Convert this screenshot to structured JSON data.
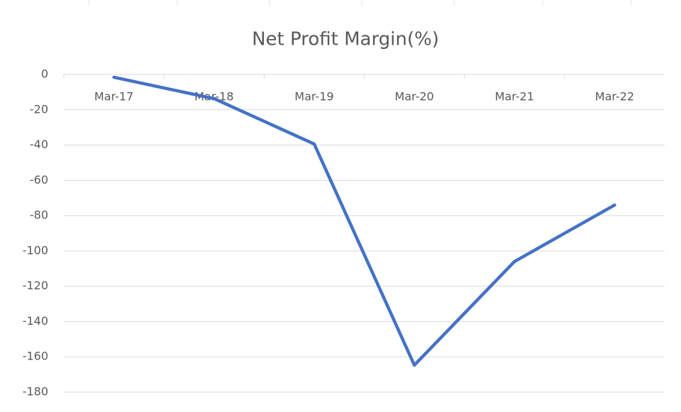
{
  "chart_data": {
    "type": "line",
    "title": "Net Profit Margin(%)",
    "categories": [
      "Mar-17",
      "Mar-18",
      "Mar-19",
      "Mar-20",
      "Mar-21",
      "Mar-22"
    ],
    "series": [
      {
        "name": "Net Profit Margin(%)",
        "color": "#4472c4",
        "values": [
          -1.6,
          -13.7,
          -39.4,
          -164.7,
          -106,
          -74
        ]
      }
    ],
    "ylim": [
      -180,
      0
    ],
    "yticks": [
      0,
      -20,
      -40,
      -60,
      -80,
      -100,
      -120,
      -140,
      -160,
      -180
    ],
    "grid": true
  }
}
